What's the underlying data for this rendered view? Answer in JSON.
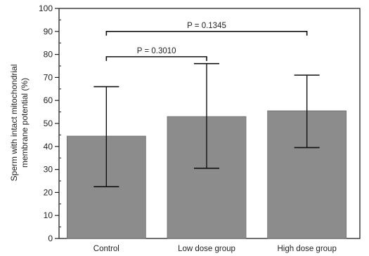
{
  "chart_data": {
    "type": "bar",
    "categories": [
      "Control",
      "Low dose group",
      "High dose group"
    ],
    "values": [
      44.5,
      53,
      55.5
    ],
    "error_low": [
      22.5,
      30.5,
      39.5
    ],
    "error_high": [
      66,
      76,
      71
    ],
    "ylabel_line1": "Sperm with intact mitochondrial",
    "ylabel_line2": "membrane potential (%)",
    "ylim": [
      0,
      100
    ],
    "yticks": [
      0,
      10,
      20,
      30,
      40,
      50,
      60,
      70,
      80,
      90,
      100
    ],
    "bar_color": "#8c8c8c",
    "annotations": [
      {
        "from": 0,
        "to": 1,
        "label": "P = 0.3010",
        "level": 79
      },
      {
        "from": 0,
        "to": 2,
        "label": "P = 0.1345",
        "level": 90
      }
    ]
  }
}
